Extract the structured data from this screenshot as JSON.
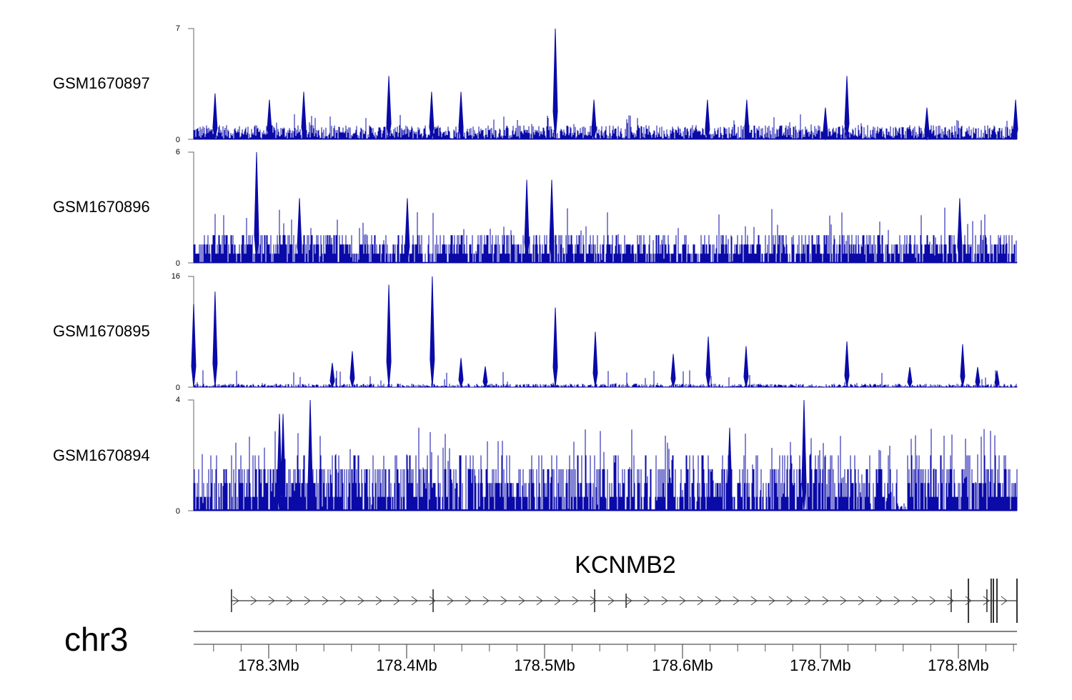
{
  "chart_data": {
    "type": "bar",
    "title": "",
    "chromosome": "chr3",
    "xlabel": "",
    "x_unit": "Mb",
    "xlim": [
      178.2456,
      178.8425
    ],
    "x_ticks": [
      178.3,
      178.4,
      178.5,
      178.6,
      178.7,
      178.8
    ],
    "x_tick_labels": [
      "178.3Mb",
      "178.4Mb",
      "178.5Mb",
      "178.6Mb",
      "178.7Mb",
      "178.8Mb"
    ],
    "minor_tick_step": 0.02,
    "color": "#0a0aa8",
    "tracks": [
      {
        "name": "GSM1670897",
        "ylim": [
          0,
          7
        ],
        "ytick_labels": [
          "0",
          "7"
        ],
        "background": {
          "level": 0.45,
          "spread": 0.9,
          "spike_rate": 0.06,
          "spike_max": 1.6
        },
        "peaks": [
          [
            178.5078,
            7
          ],
          [
            178.3871,
            4.0
          ],
          [
            178.7192,
            4.0
          ],
          [
            178.2611,
            2.9
          ],
          [
            178.3254,
            3.0
          ],
          [
            178.4181,
            3.0
          ],
          [
            178.4394,
            3.0
          ],
          [
            178.6466,
            2.5
          ],
          [
            178.7772,
            2.0
          ],
          [
            178.8415,
            2.5
          ],
          [
            178.3005,
            2.5
          ],
          [
            178.5358,
            2.5
          ],
          [
            178.6181,
            2.5
          ],
          [
            178.7036,
            2.0
          ]
        ]
      },
      {
        "name": "GSM1670896",
        "ylim": [
          0,
          6
        ],
        "ytick_labels": [
          "0",
          "6"
        ],
        "background": {
          "level": 0.8,
          "spread": 1.5,
          "spike_rate": 0.08,
          "spike_max": 3.0
        },
        "peaks": [
          [
            178.2912,
            6
          ],
          [
            178.4871,
            4.5
          ],
          [
            178.5052,
            4.5
          ],
          [
            178.801,
            3.5
          ],
          [
            178.3223,
            3.5
          ],
          [
            178.4005,
            3.5
          ]
        ]
      },
      {
        "name": "GSM1670895",
        "ylim": [
          0,
          16
        ],
        "ytick_labels": [
          "0",
          "16"
        ],
        "background": {
          "level": 0.2,
          "spread": 0.6,
          "spike_rate": 0.03,
          "spike_max": 2.5
        },
        "peaks": [
          [
            178.2456,
            12
          ],
          [
            178.2611,
            13.8
          ],
          [
            178.3871,
            14.8
          ],
          [
            178.4186,
            16
          ],
          [
            178.5078,
            11.5
          ],
          [
            178.5368,
            8
          ],
          [
            178.6187,
            7.3
          ],
          [
            178.6461,
            5.9
          ],
          [
            178.5933,
            4.8
          ],
          [
            178.7192,
            6.6
          ],
          [
            178.8031,
            6.2
          ],
          [
            178.3606,
            5.2
          ],
          [
            178.4394,
            4.2
          ],
          [
            178.457,
            3.0
          ],
          [
            178.7648,
            2.9
          ],
          [
            178.814,
            2.9
          ],
          [
            178.828,
            2.4
          ],
          [
            178.3461,
            3.5
          ]
        ]
      },
      {
        "name": "GSM1670894",
        "ylim": [
          0,
          4
        ],
        "ytick_labels": [
          "0",
          "4"
        ],
        "background": {
          "level": 0.9,
          "spread": 2.2,
          "spike_rate": 0.1,
          "spike_max": 3.0
        },
        "peaks": [
          [
            178.3301,
            4
          ],
          [
            178.6881,
            4
          ],
          [
            178.3078,
            3.5
          ],
          [
            178.3104,
            3.5
          ],
          [
            178.6342,
            3.0
          ]
        ]
      }
    ],
    "gene": {
      "label": "KCNMB2",
      "strand": "+",
      "start": 178.273,
      "end": 178.8425,
      "exons": [
        [
          178.273,
          "m"
        ],
        [
          178.4192,
          "m"
        ],
        [
          178.5363,
          "m"
        ],
        [
          178.5591,
          "s"
        ],
        [
          178.7948,
          "m"
        ],
        [
          178.8073,
          "t"
        ],
        [
          178.8207,
          "m"
        ],
        [
          178.8238,
          "t"
        ],
        [
          178.8254,
          "t"
        ],
        [
          178.828,
          "t"
        ],
        [
          178.8425,
          "t"
        ]
      ]
    }
  }
}
